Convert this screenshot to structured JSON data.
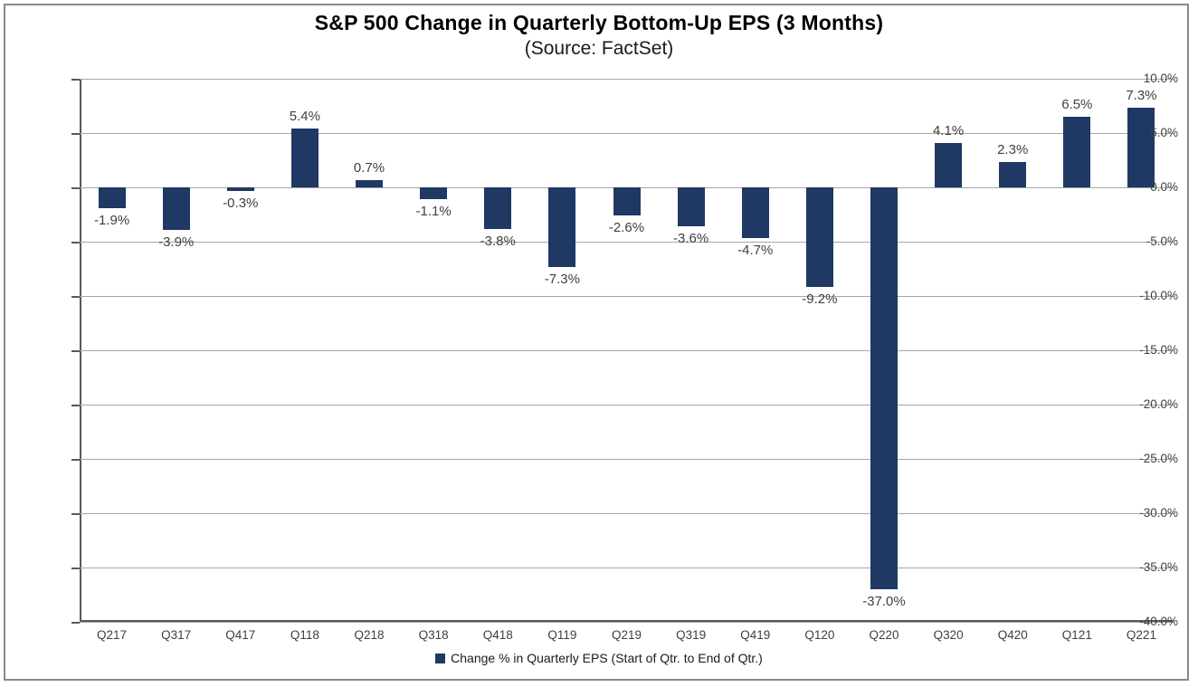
{
  "title": "S&P 500 Change in Quarterly Bottom-Up EPS (3 Months)",
  "subtitle": "(Source: FactSet)",
  "legend": {
    "marker": "navy-square-icon",
    "label": "Change % in Quarterly EPS (Start of Qtr. to End of Qtr.)"
  },
  "colors": {
    "bar": "#1F3864",
    "gridline": "#a6a6a6",
    "axis": "#595959",
    "tick_text": "#404040",
    "title_text": "#000000"
  },
  "chart_data": {
    "type": "bar",
    "title": "S&P 500 Change in Quarterly Bottom-Up EPS (3 Months)",
    "subtitle": "(Source: FactSet)",
    "categories": [
      "Q217",
      "Q317",
      "Q417",
      "Q118",
      "Q218",
      "Q318",
      "Q418",
      "Q119",
      "Q219",
      "Q319",
      "Q419",
      "Q120",
      "Q220",
      "Q320",
      "Q420",
      "Q121",
      "Q221"
    ],
    "values": [
      -1.9,
      -3.9,
      -0.3,
      5.4,
      0.7,
      -1.1,
      -3.8,
      -7.3,
      -2.6,
      -3.6,
      -4.7,
      -9.2,
      -37.0,
      4.1,
      2.3,
      6.5,
      7.3
    ],
    "value_labels": [
      "-1.9%",
      "-3.9%",
      "-0.3%",
      "5.4%",
      "0.7%",
      "-1.1%",
      "-3.8%",
      "-7.3%",
      "-2.6%",
      "-3.6%",
      "-4.7%",
      "-9.2%",
      "-37.0%",
      "4.1%",
      "2.3%",
      "6.5%",
      "7.3%"
    ],
    "series_name": "Change % in Quarterly EPS (Start of Qtr. to End of Qtr.)",
    "xlabel": "",
    "ylabel": "",
    "ylim": [
      -40,
      10
    ],
    "ytick_step": 5,
    "ytick_labels": [
      "10.0%",
      "5.0%",
      "0.0%",
      "-5.0%",
      "-10.0%",
      "-15.0%",
      "-20.0%",
      "-25.0%",
      "-30.0%",
      "-35.0%",
      "-40.0%"
    ],
    "grid": true,
    "legend_position": "bottom"
  }
}
